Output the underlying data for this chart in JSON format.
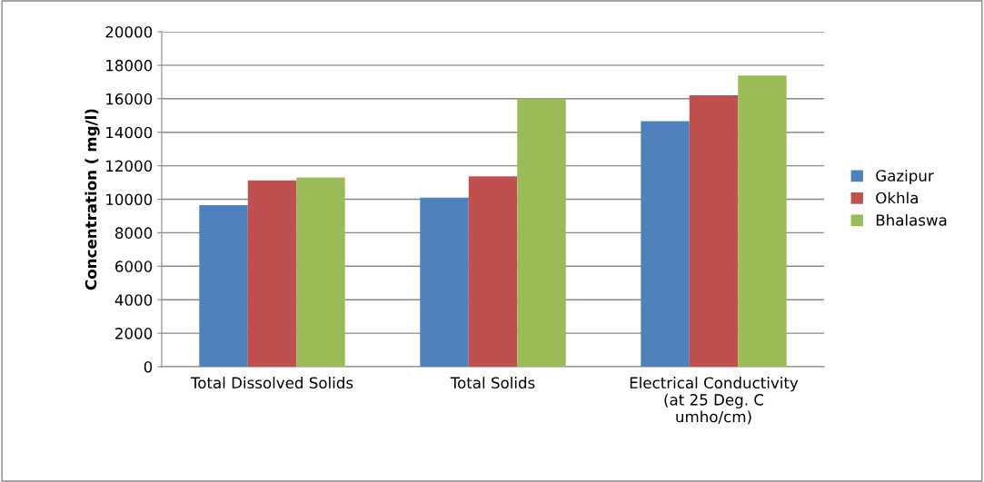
{
  "chart_data": {
    "type": "bar",
    "ylabel": "Concentration ( mg/l)",
    "categories": [
      "Total Dissolved Solids",
      "Total Solids",
      "Electrical Conductivity\n(at 25 Deg. C\numho/cm)"
    ],
    "series": [
      {
        "name": "Gazipur",
        "color": "#4f81bd",
        "values": [
          9650,
          10090,
          14660
        ]
      },
      {
        "name": "Okhla",
        "color": "#c0504d",
        "values": [
          11120,
          11370,
          16200
        ]
      },
      {
        "name": "Bhalaswa",
        "color": "#9bbb59",
        "values": [
          11300,
          16000,
          17380
        ]
      }
    ],
    "ylim": [
      0,
      20000
    ],
    "yticks": [
      0,
      2000,
      4000,
      6000,
      8000,
      10000,
      12000,
      14000,
      16000,
      18000,
      20000
    ],
    "grid": "y",
    "legend": "right"
  }
}
